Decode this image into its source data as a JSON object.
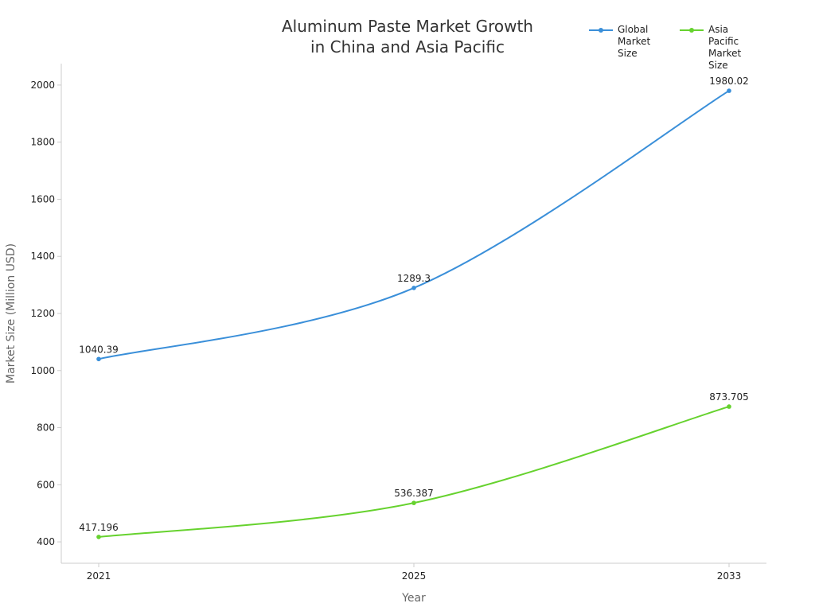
{
  "chart_data": {
    "type": "line",
    "title": "Aluminum Paste Market Growth\nin China and Asia Pacific",
    "xlabel": "Year",
    "ylabel": "Market Size (Million USD)",
    "x": [
      "2021",
      "2025",
      "2033"
    ],
    "y_ticks": [
      400,
      600,
      800,
      1000,
      1200,
      1400,
      1600,
      1800,
      2000
    ],
    "ylim": [
      325,
      2075
    ],
    "grid": false,
    "legend_position": "top-right",
    "series": [
      {
        "name": "Global\nMarket Size",
        "color": "#3a8fd9",
        "values": [
          1040.39,
          1289.3,
          1980.02
        ],
        "labels": [
          "1040.39",
          "1289.3",
          "1980.02"
        ]
      },
      {
        "name": "Asia Pacific\nMarket Size",
        "color": "#66d22e",
        "values": [
          417.196,
          536.387,
          873.705
        ],
        "labels": [
          "417.196",
          "536.387",
          "873.705"
        ]
      }
    ]
  }
}
